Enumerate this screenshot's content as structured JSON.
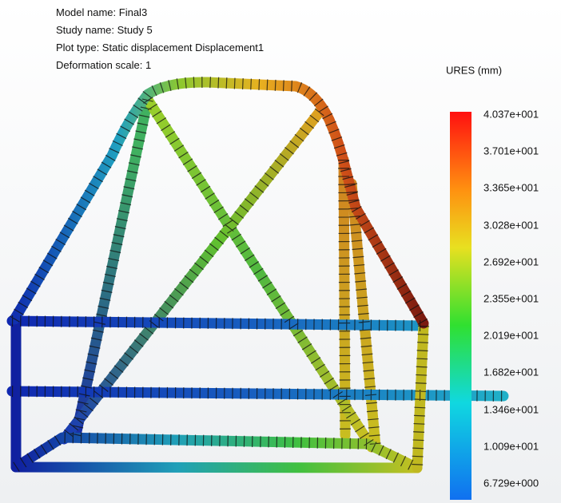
{
  "header": {
    "lines": [
      "Model name: Final3",
      "Study name: Study 5",
      "Plot type: Static displacement Displacement1",
      "Deformation scale: 1"
    ]
  },
  "legend": {
    "title": "URES (mm)",
    "labels": [
      "4.037e+001",
      "3.701e+001",
      "3.365e+001",
      "3.028e+001",
      "2.692e+001",
      "2.355e+001",
      "2.019e+001",
      "1.682e+001",
      "1.346e+001",
      "1.009e+001",
      "6.729e+000"
    ]
  }
}
